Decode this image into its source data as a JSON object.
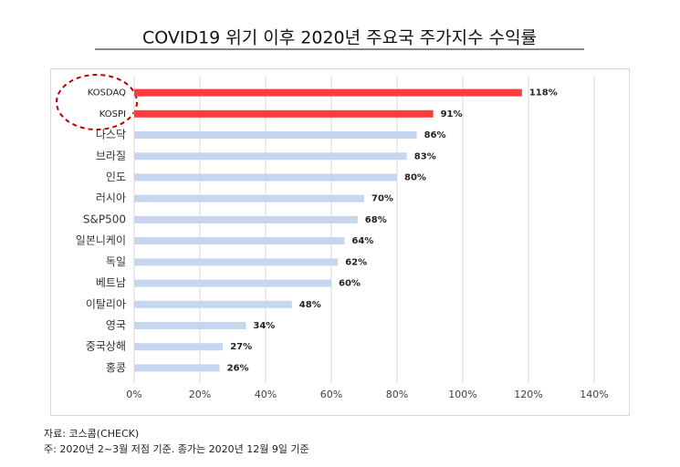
{
  "chart_data": {
    "type": "bar",
    "orientation": "horizontal",
    "title": "COVID19 위기 이후 2020년 주요국 주가지수 수익률",
    "categories": [
      "KOSDAQ",
      "KOSPI",
      "나스닥",
      "브라질",
      "인도",
      "러시아",
      "S&P500",
      "일본니케이",
      "독일",
      "베트남",
      "이탈리아",
      "영국",
      "중국상해",
      "홍콩"
    ],
    "values": [
      118,
      91,
      86,
      83,
      80,
      70,
      68,
      64,
      62,
      60,
      48,
      34,
      27,
      26
    ],
    "value_labels": [
      "118%",
      "91%",
      "86%",
      "83%",
      "80%",
      "70%",
      "68%",
      "64%",
      "62%",
      "60%",
      "48%",
      "34%",
      "27%",
      "26%"
    ],
    "colors": [
      "#ff3b3b",
      "#ff3b3b",
      "#c6d6ef",
      "#c6d6ef",
      "#c6d6ef",
      "#c6d6ef",
      "#c6d6ef",
      "#c6d6ef",
      "#c6d6ef",
      "#c6d6ef",
      "#c6d6ef",
      "#c6d6ef",
      "#c6d6ef",
      "#c6d6ef"
    ],
    "xlim": [
      0,
      140
    ],
    "xticks": [
      {
        "value": 0,
        "label": "0%"
      },
      {
        "value": 20,
        "label": "20%"
      },
      {
        "value": 40,
        "label": "40%"
      },
      {
        "value": 60,
        "label": "60%"
      },
      {
        "value": 80,
        "label": "80%"
      },
      {
        "value": 100,
        "label": "100%"
      },
      {
        "value": 120,
        "label": "120%"
      },
      {
        "value": 140,
        "label": "140%"
      }
    ],
    "grid": true,
    "source": "자료: 코스콤(CHECK)",
    "note": "주: 2020년 2~3월 저점 기준. 종가는 2020년 12월 9일 기준"
  }
}
